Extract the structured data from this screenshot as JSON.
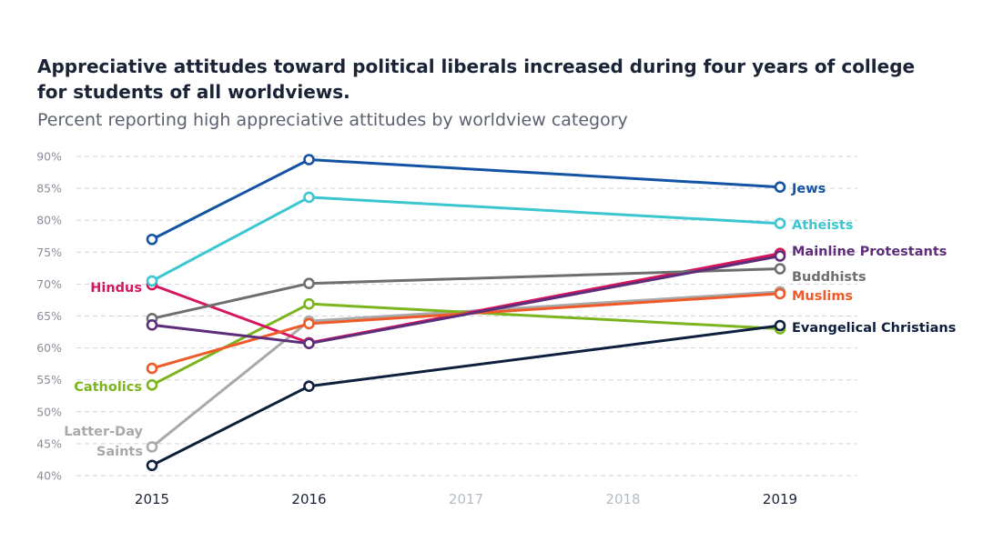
{
  "chart_data": {
    "type": "line",
    "title": "Appreciative attitudes toward political liberals increased during four years of college for students of all worldviews.",
    "subtitle": "Percent reporting high appreciative attitudes by worldview category",
    "xlabel": "",
    "ylabel": "",
    "x": [
      "2015",
      "2016",
      "2017",
      "2018",
      "2019"
    ],
    "x_tick_colors": [
      "#1b2336",
      "#1b2336",
      "#b5bcc6",
      "#b5bcc6",
      "#1b2336"
    ],
    "ylim": [
      40,
      90
    ],
    "y_ticks": [
      40,
      45,
      50,
      55,
      60,
      65,
      70,
      75,
      80,
      85,
      90
    ],
    "y_tick_suffix": "%",
    "grid": "horizontal dashed",
    "series": [
      {
        "name": "Latter-Day Saints",
        "label_lines": [
          "Latter-Day",
          "Saints"
        ],
        "label_side": "left",
        "color": "#a9a9a9",
        "points": [
          {
            "x": "2015",
            "y": 44.5
          },
          {
            "x": "2016",
            "y": 64.2
          },
          {
            "x": "2019",
            "y": 68.8
          }
        ]
      },
      {
        "name": "Catholics",
        "label_lines": [
          "Catholics"
        ],
        "label_side": "left",
        "color": "#7ab51d",
        "points": [
          {
            "x": "2015",
            "y": 54.2
          },
          {
            "x": "2016",
            "y": 66.9
          },
          {
            "x": "2019",
            "y": 63.0
          }
        ]
      },
      {
        "name": "Hindus",
        "label_lines": [
          "Hindus"
        ],
        "label_side": "left",
        "color": "#d7155f",
        "points": [
          {
            "x": "2015",
            "y": 69.9
          },
          {
            "x": "2016",
            "y": 60.8
          },
          {
            "x": "2019",
            "y": 74.8
          }
        ]
      },
      {
        "name": "Buddhists",
        "label_lines": [
          "Buddhists"
        ],
        "label_side": "right",
        "color": "#6e6e6e",
        "points": [
          {
            "x": "2015",
            "y": 64.6
          },
          {
            "x": "2016",
            "y": 70.1
          },
          {
            "x": "2019",
            "y": 72.4
          }
        ]
      },
      {
        "name": "Muslims",
        "label_lines": [
          "Muslims"
        ],
        "label_side": "right",
        "color": "#f05a28",
        "points": [
          {
            "x": "2015",
            "y": 56.8
          },
          {
            "x": "2016",
            "y": 63.8
          },
          {
            "x": "2019",
            "y": 68.5
          }
        ]
      },
      {
        "name": "Mainline Protestants",
        "label_lines": [
          "Mainline Protestants"
        ],
        "label_side": "right",
        "color": "#5e2d79",
        "points": [
          {
            "x": "2015",
            "y": 63.6
          },
          {
            "x": "2016",
            "y": 60.7
          },
          {
            "x": "2019",
            "y": 74.4
          }
        ]
      },
      {
        "name": "Evangelical Christians",
        "label_lines": [
          "Evangelical Christians"
        ],
        "label_side": "right",
        "color": "#0e1f3d",
        "points": [
          {
            "x": "2015",
            "y": 41.6
          },
          {
            "x": "2016",
            "y": 54.0
          },
          {
            "x": "2019",
            "y": 63.5
          }
        ]
      },
      {
        "name": "Atheists",
        "label_lines": [
          "Atheists"
        ],
        "label_side": "right",
        "color": "#3cc6d1",
        "points": [
          {
            "x": "2015",
            "y": 70.5
          },
          {
            "x": "2016",
            "y": 83.6
          },
          {
            "x": "2019",
            "y": 79.5
          }
        ]
      },
      {
        "name": "Jews",
        "label_lines": [
          "Jews"
        ],
        "label_side": "right",
        "color": "#1253a4",
        "points": [
          {
            "x": "2015",
            "y": 77.0
          },
          {
            "x": "2016",
            "y": 89.5
          },
          {
            "x": "2019",
            "y": 85.2
          }
        ]
      }
    ]
  }
}
